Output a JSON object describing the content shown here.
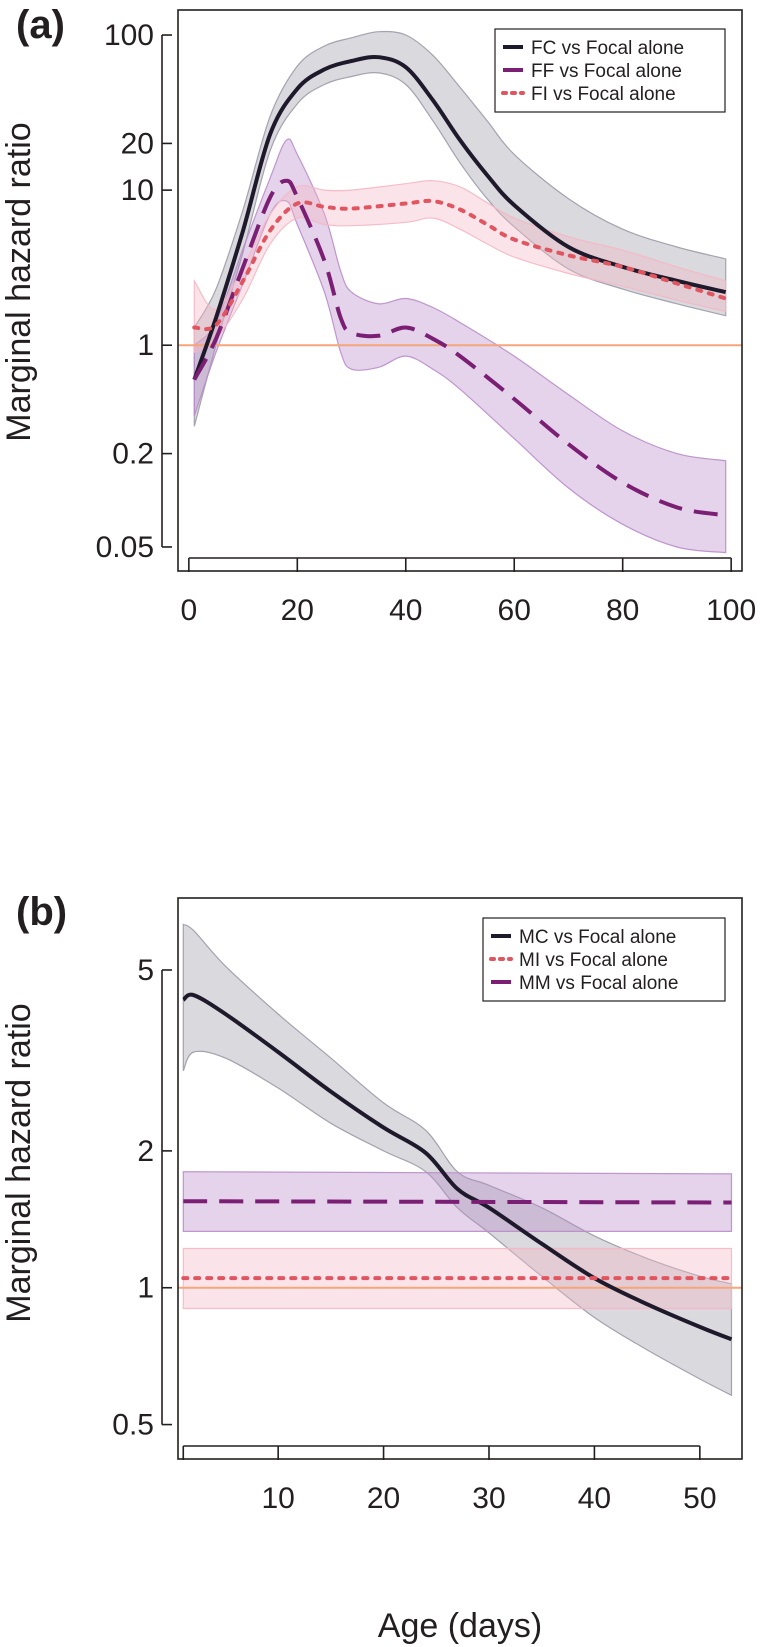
{
  "chart_data": [
    {
      "id": "a",
      "type": "line",
      "panel_label": "(a)",
      "ylabel": "Marginal hazard ratio",
      "xlabel": "",
      "yscale": "log",
      "xlim": [
        -2,
        102
      ],
      "ylim": [
        0.035,
        145
      ],
      "x_ticks": [
        0,
        20,
        40,
        60,
        80,
        100
      ],
      "x_tick_labels": [
        "0",
        "20",
        "40",
        "60",
        "80",
        "100"
      ],
      "y_ticks": [
        0.05,
        0.2,
        1,
        10,
        20,
        100
      ],
      "y_tick_labels": [
        "0.05",
        "0.2",
        "1",
        "10",
        "20",
        "100"
      ],
      "reference_line": {
        "y": 1,
        "color": "#f5a67a"
      },
      "legend": {
        "position": "top-right"
      },
      "series": [
        {
          "name": "FC vs Focal alone",
          "color": "#1f1a2b",
          "dash": "solid",
          "band_color": "#9c9aa8",
          "x": [
            1,
            5,
            10,
            15,
            20,
            25,
            30,
            35,
            40,
            45,
            50,
            55,
            60,
            70,
            80,
            90,
            99
          ],
          "y": [
            0.6,
            1.5,
            5.5,
            23,
            45,
            60,
            68,
            72,
            62,
            38,
            21,
            12.5,
            8,
            4.3,
            3.2,
            2.6,
            2.2
          ],
          "lower": [
            0.3,
            1.0,
            4.0,
            18,
            36,
            48,
            54,
            57,
            48,
            28,
            15,
            8.8,
            5.8,
            3.1,
            2.3,
            1.85,
            1.55
          ],
          "upper": [
            1.3,
            2.3,
            7.5,
            30,
            63,
            85,
            96,
            105,
            100,
            74,
            46,
            28,
            17,
            8.8,
            5.6,
            4.3,
            3.6
          ]
        },
        {
          "name": "FF vs Focal alone",
          "color": "#7b1f74",
          "dash": "dashed",
          "band_color": "#b98cc9",
          "x": [
            1,
            5,
            10,
            15,
            18,
            20,
            25,
            28,
            30,
            35,
            40,
            45,
            50,
            60,
            70,
            80,
            90,
            99
          ],
          "y": [
            0.6,
            1.1,
            3.2,
            9,
            11.5,
            9,
            3.5,
            1.5,
            1.2,
            1.15,
            1.3,
            1.1,
            0.85,
            0.45,
            0.23,
            0.13,
            0.09,
            0.08
          ],
          "lower": [
            0.35,
            0.9,
            2.5,
            7,
            8.5,
            6,
            2.2,
            0.9,
            0.7,
            0.72,
            0.85,
            0.7,
            0.52,
            0.25,
            0.12,
            0.07,
            0.05,
            0.046
          ],
          "upper": [
            1.0,
            1.4,
            4.2,
            12,
            21,
            17,
            7,
            3.0,
            2.2,
            1.85,
            2.0,
            1.75,
            1.4,
            0.85,
            0.48,
            0.28,
            0.2,
            0.18
          ]
        },
        {
          "name": "FI vs Focal alone",
          "color": "#e05560",
          "dash": "dotted",
          "band_color": "#f4b7c4",
          "x": [
            1,
            5,
            10,
            15,
            20,
            25,
            30,
            40,
            45,
            50,
            55,
            60,
            70,
            80,
            90,
            99
          ],
          "y": [
            1.3,
            1.35,
            2.6,
            5.5,
            8.2,
            7.8,
            7.6,
            8.2,
            8.5,
            7.5,
            6.0,
            4.8,
            3.8,
            3.2,
            2.5,
            2.0
          ],
          "lower": [
            0.9,
            1.1,
            2.0,
            4.5,
            6.6,
            6.0,
            5.9,
            6.2,
            6.6,
            5.6,
            4.5,
            3.7,
            2.9,
            2.4,
            1.95,
            1.65
          ],
          "upper": [
            2.6,
            1.7,
            3.2,
            7.0,
            10.5,
            10,
            10,
            11,
            11.5,
            10.5,
            8.3,
            6.6,
            5.0,
            4.1,
            3.2,
            2.6
          ]
        }
      ]
    },
    {
      "id": "b",
      "type": "line",
      "panel_label": "(b)",
      "ylabel": "Marginal hazard ratio",
      "xlabel": "Age (days)",
      "yscale": "log",
      "xlim": [
        0.5,
        54
      ],
      "ylim": [
        0.42,
        7.2
      ],
      "x_ticks": [
        1,
        10,
        20,
        30,
        40,
        50
      ],
      "x_tick_labels": [
        "",
        "10",
        "20",
        "30",
        "40",
        "50"
      ],
      "y_ticks": [
        0.5,
        1,
        2,
        5
      ],
      "y_tick_labels": [
        "0.5",
        "1",
        "2",
        "5"
      ],
      "reference_line": {
        "y": 1,
        "color": "#f5a67a"
      },
      "legend": {
        "position": "top-right"
      },
      "series": [
        {
          "name": "MC vs Focal alone",
          "color": "#1f1a2b",
          "dash": "solid",
          "band_color": "#9c9aa8",
          "x": [
            1,
            2,
            5,
            10,
            15,
            20,
            24,
            27,
            30,
            35,
            40,
            45,
            50,
            53
          ],
          "y": [
            4.3,
            4.4,
            4.0,
            3.3,
            2.7,
            2.25,
            1.98,
            1.65,
            1.5,
            1.25,
            1.05,
            0.92,
            0.82,
            0.77
          ],
          "lower": [
            3.0,
            3.3,
            3.2,
            2.75,
            2.3,
            2.0,
            1.8,
            1.5,
            1.32,
            1.06,
            0.86,
            0.73,
            0.63,
            0.58
          ],
          "upper": [
            6.3,
            6.1,
            5.1,
            4.0,
            3.2,
            2.55,
            2.22,
            1.8,
            1.68,
            1.5,
            1.3,
            1.16,
            1.06,
            1.02
          ]
        },
        {
          "name": "MI vs Focal alone",
          "color": "#e05560",
          "dash": "dotted",
          "band_color": "#f4b7c4",
          "x": [
            1,
            53
          ],
          "y": [
            1.05,
            1.05
          ],
          "lower": [
            0.9,
            0.9
          ],
          "upper": [
            1.22,
            1.22
          ]
        },
        {
          "name": "MM vs Focal alone",
          "color": "#7b1f74",
          "dash": "dashed",
          "band_color": "#b98cc9",
          "x": [
            1,
            53
          ],
          "y": [
            1.55,
            1.54
          ],
          "lower": [
            1.33,
            1.33
          ],
          "upper": [
            1.8,
            1.78
          ]
        }
      ]
    }
  ]
}
